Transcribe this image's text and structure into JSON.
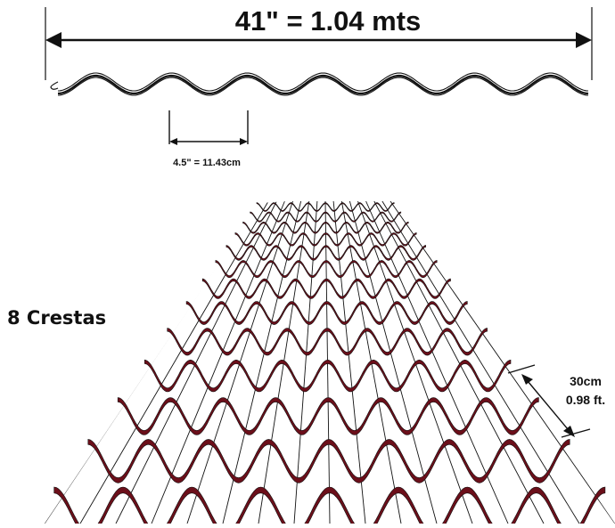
{
  "diagram": {
    "total_width_label": "41\" = 1.04 mts",
    "pitch_label": "4.5\" = 11.43cm",
    "crests_label": "8 Crestas",
    "overlap_label_line1": "30cm",
    "overlap_label_line2": "0.98 ft."
  },
  "colors": {
    "line": "#111111",
    "sheet_profile": "#6b0f1a",
    "background": "#ffffff"
  }
}
